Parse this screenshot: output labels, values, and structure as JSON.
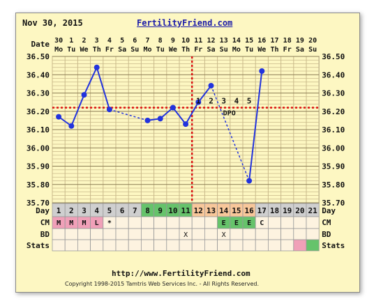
{
  "header": {
    "date": "Nov 30, 2015",
    "site": "FertilityFriend.com"
  },
  "footer": {
    "url": "http://www.FertilityFriend.com",
    "copyright": "Copyright 1998-2015 Tamtris Web Services Inc. - All Rights Reserved."
  },
  "row_labels": {
    "date": "Date",
    "day": "Day",
    "cm": "CM",
    "bd": "BD",
    "stats": "Stats"
  },
  "colors": {
    "temp_line": "#2233dd",
    "crosshair": "#dd1111",
    "grid": "#c9b98a",
    "plot_bg": "#fdf7c2",
    "menses": "#f0a0b8",
    "fertile": "#66c36b",
    "post_ov": "#f8c79a",
    "cycle_day": "#cfcfcf"
  },
  "chart_data": {
    "type": "line",
    "dates": [
      "30",
      "1",
      "2",
      "3",
      "4",
      "5",
      "6",
      "7",
      "8",
      "9",
      "10",
      "11",
      "12",
      "13",
      "14",
      "15",
      "16",
      "17",
      "18",
      "19",
      "20"
    ],
    "weekdays": [
      "Mo",
      "Tu",
      "We",
      "Th",
      "Fr",
      "Sa",
      "Su",
      "Mo",
      "Tu",
      "We",
      "Th",
      "Fr",
      "Sa",
      "Su",
      "Mo",
      "Tu",
      "We",
      "Th",
      "Fr",
      "Sa",
      "Su"
    ],
    "cycle_days": [
      "1",
      "2",
      "3",
      "4",
      "5",
      "6",
      "7",
      "8",
      "9",
      "10",
      "11",
      "12",
      "13",
      "14",
      "15",
      "16",
      "17",
      "18",
      "19",
      "20",
      "21"
    ],
    "y_ticks": [
      "36.50",
      "36.40",
      "36.30",
      "36.20",
      "36.10",
      "36.00",
      "35.90",
      "35.80",
      "35.70"
    ],
    "ylim": [
      35.7,
      36.5
    ],
    "temps": [
      36.17,
      36.12,
      36.29,
      36.44,
      36.21,
      null,
      null,
      36.15,
      36.16,
      36.22,
      36.13,
      36.25,
      36.34,
      null,
      null,
      35.82,
      36.42,
      null,
      null,
      null,
      null
    ],
    "coverline": 36.22,
    "ovulation_day_index": 10,
    "dpo_labels": [
      {
        "day_index": 11,
        "text": "1"
      },
      {
        "day_index": 12,
        "text": "2"
      },
      {
        "day_index": 13,
        "text": "3"
      },
      {
        "day_index": 14,
        "text": "4"
      },
      {
        "day_index": 15,
        "text": "5"
      }
    ],
    "dpo_text": "DPO",
    "cm": [
      "M",
      "M",
      "M",
      "L",
      "*",
      "",
      "",
      "",
      "",
      "",
      "",
      "",
      "",
      "E",
      "E",
      "E",
      "C",
      "",
      "",
      "",
      ""
    ],
    "bd": [
      "",
      "",
      "",
      "",
      "",
      "",
      "",
      "",
      "",
      "",
      "X",
      "",
      "",
      "X",
      "",
      "",
      "",
      "",
      "",
      "",
      ""
    ],
    "day_shading": [
      "menses",
      "menses",
      "menses",
      "menses",
      "menses",
      "none",
      "none",
      "fertile",
      "fertile",
      "fertile",
      "fertile",
      "post",
      "post",
      "post",
      "post",
      "post",
      "none",
      "none",
      "none",
      "none",
      "none"
    ],
    "stats_shading": [
      "",
      "",
      "",
      "",
      "",
      "",
      "",
      "",
      "",
      "",
      "",
      "",
      "",
      "",
      "",
      "",
      "",
      "",
      "",
      "pink",
      "green"
    ]
  }
}
